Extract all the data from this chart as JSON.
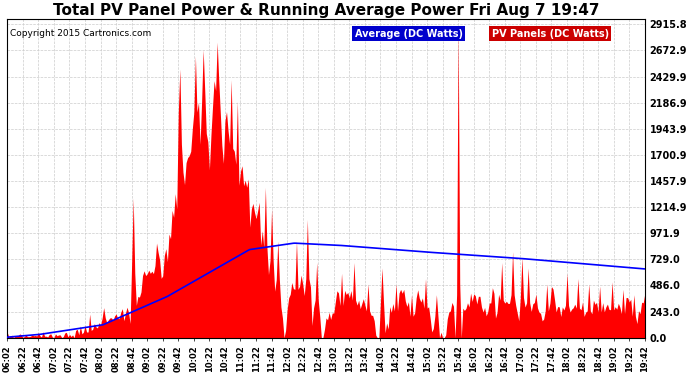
{
  "title": "Total PV Panel Power & Running Average Power Fri Aug 7 19:47",
  "copyright": "Copyright 2015 Cartronics.com",
  "legend_avg": "Average (DC Watts)",
  "legend_pv": "PV Panels (DC Watts)",
  "ymax": 2915.8,
  "ymin": 0.0,
  "yticks": [
    0.0,
    243.0,
    486.0,
    729.0,
    971.9,
    1214.9,
    1457.9,
    1700.9,
    1943.9,
    2186.9,
    2429.9,
    2672.9,
    2915.8
  ],
  "background_color": "#ffffff",
  "plot_bg_color": "#ffffff",
  "grid_color": "#cccccc",
  "pv_color": "#ff0000",
  "avg_color": "#0000ff",
  "title_fontsize": 11,
  "avg_ctrl_x": [
    0.0,
    0.05,
    0.15,
    0.25,
    0.38,
    0.45,
    0.52,
    0.65,
    0.8,
    1.0
  ],
  "avg_ctrl_y": [
    5,
    30,
    120,
    380,
    820,
    880,
    860,
    800,
    740,
    640
  ]
}
